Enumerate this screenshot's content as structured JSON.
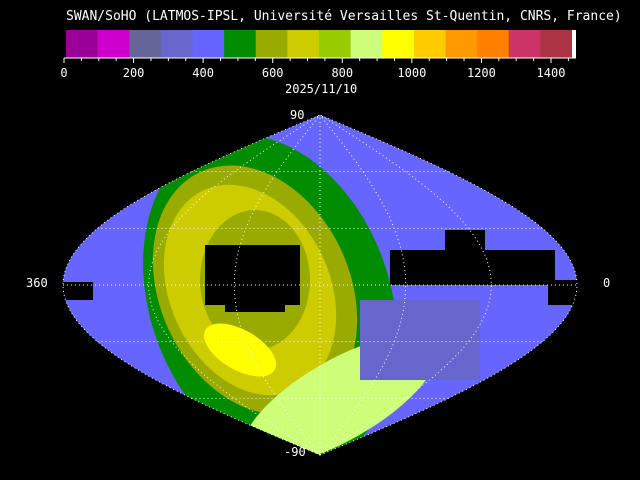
{
  "title": "SWAN/SoHO (LATMOS-IPSL, Université Versailles St-Quentin, CNRS, France)",
  "date": "2025/11/10",
  "chart_data": {
    "type": "heatmap",
    "projection": "sinusoidal all-sky",
    "colorbar": {
      "ticks": [
        "0",
        "200",
        "400",
        "600",
        "800",
        "1000",
        "1200",
        "1400"
      ],
      "range": [
        0,
        1500
      ],
      "colors": [
        "#990099",
        "#cc00cc",
        "#666699",
        "#6666cc",
        "#6666ff",
        "#008c00",
        "#99aa00",
        "#cccc00",
        "#99cc00",
        "#ccff77",
        "#ffff00",
        "#ffcc00",
        "#ff9900",
        "#ff7f00",
        "#cc3366",
        "#aa3344"
      ]
    },
    "axis_labels": {
      "top": "90",
      "bottom": "-90",
      "left": "360",
      "right": "0"
    },
    "grid": true
  }
}
